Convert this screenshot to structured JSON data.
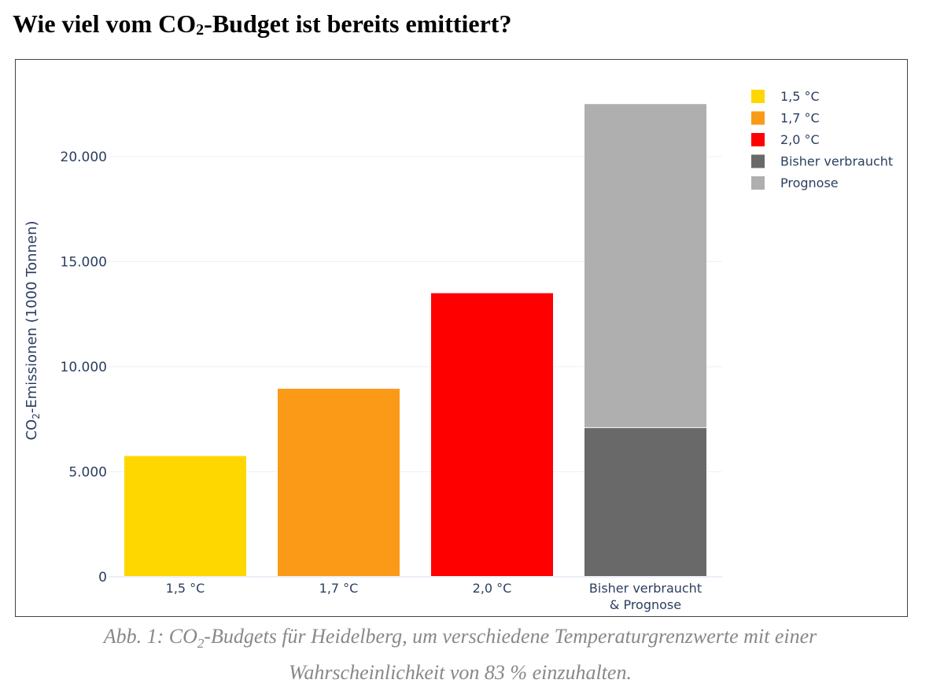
{
  "page": {
    "title_prefix": "Wie viel vom CO",
    "title_sub": "2",
    "title_suffix": "-Budget ist bereits emittiert?",
    "caption_prefix": "Abb. 1: CO",
    "caption_sub": "2",
    "caption_line1_suffix": "-Budgets für Heidelberg, um verschiedene Temperaturgrenzwerte mit einer",
    "caption_line2": "Wahrscheinlichkeit von 83 % einzuhalten."
  },
  "chart_data": {
    "type": "bar",
    "title": "",
    "xlabel": "",
    "ylabel_prefix": "CO",
    "ylabel_sub": "2",
    "ylabel_suffix": "-Emissionen (1000 Tonnen)",
    "ylim": [
      0,
      23000
    ],
    "yticks": [
      0,
      5000,
      10000,
      15000,
      20000
    ],
    "ytick_labels": [
      "0",
      "5.000",
      "10.000",
      "15.000",
      "20.000"
    ],
    "categories": [
      "1,5 °C",
      "1,7 °C",
      "2,0 °C",
      "Bisher verbraucht & Prognose"
    ],
    "category_label_lines": [
      [
        "1,5 °C"
      ],
      [
        "1,7 °C"
      ],
      [
        "2,0 °C"
      ],
      [
        "Bisher verbraucht",
        "& Prognose"
      ]
    ],
    "series": [
      {
        "name": "1,5 °C",
        "color": "#FFD700",
        "values": [
          5750,
          0,
          0,
          0
        ]
      },
      {
        "name": "1,7 °C",
        "color": "#FB9A17",
        "values": [
          0,
          8950,
          0,
          0
        ]
      },
      {
        "name": "2,0 °C",
        "color": "#FF0000",
        "values": [
          0,
          0,
          13500,
          0
        ]
      },
      {
        "name": "Bisher verbraucht",
        "color": "#696969",
        "values": [
          0,
          0,
          0,
          7100
        ]
      },
      {
        "name": "Prognose",
        "color": "#AFAFAF",
        "values": [
          0,
          0,
          0,
          15400
        ]
      }
    ],
    "barmode": "stack",
    "grid": true,
    "legend_position": "top-right"
  }
}
